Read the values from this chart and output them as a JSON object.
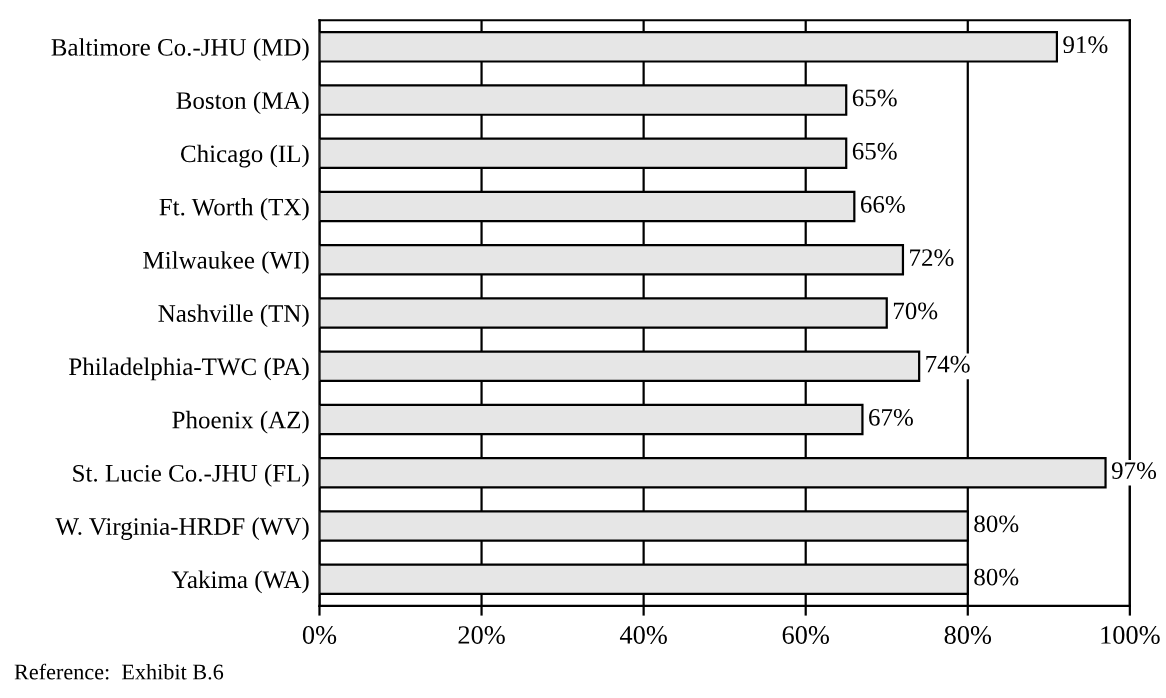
{
  "chart_data": {
    "type": "bar",
    "orientation": "horizontal",
    "categories": [
      "Baltimore Co.-JHU (MD)",
      "Boston (MA)",
      "Chicago (IL)",
      "Ft. Worth (TX)",
      "Milwaukee (WI)",
      "Nashville (TN)",
      "Philadelphia-TWC (PA)",
      "Phoenix (AZ)",
      "St. Lucie Co.-JHU (FL)",
      "W. Virginia-HRDF (WV)",
      "Yakima (WA)"
    ],
    "values": [
      91,
      65,
      65,
      66,
      72,
      70,
      74,
      67,
      97,
      80,
      80
    ],
    "value_labels": [
      "91%",
      "65%",
      "65%",
      "66%",
      "72%",
      "70%",
      "74%",
      "67%",
      "97%",
      "80%",
      "80%"
    ],
    "color": "#e6e6e6",
    "xlim": [
      0,
      100
    ],
    "xticks": [
      {
        "value": 0,
        "label": "0%"
      },
      {
        "value": 20,
        "label": "20%"
      },
      {
        "value": 40,
        "label": "40%"
      },
      {
        "value": 60,
        "label": "60%"
      },
      {
        "value": 80,
        "label": "80%"
      },
      {
        "value": 100,
        "label": "100%"
      }
    ],
    "grid": "x",
    "annotations": [
      "Reference:  Exhibit B.6"
    ]
  }
}
